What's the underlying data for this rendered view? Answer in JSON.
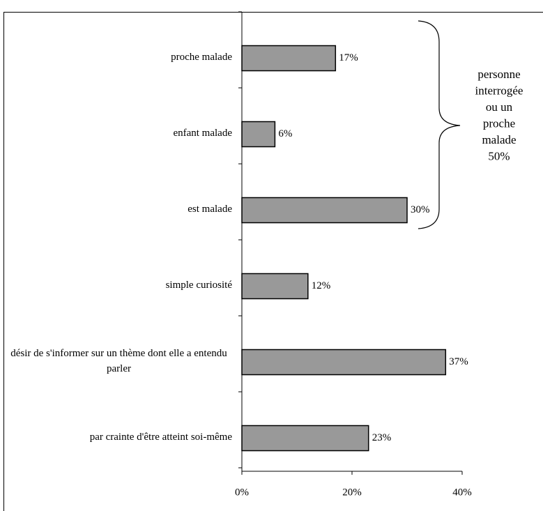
{
  "chart_data": {
    "type": "bar",
    "orientation": "horizontal",
    "categories": [
      "proche malade",
      "enfant malade",
      "est malade",
      "simple curiosité",
      "désir de s'informer sur un thème dont elle a entendu parler",
      "par crainte d'être atteint soi-même"
    ],
    "values": [
      17,
      6,
      30,
      12,
      37,
      23
    ],
    "value_labels": [
      "17%",
      "6%",
      "30%",
      "12%",
      "37%",
      "23%"
    ],
    "color": "#999999",
    "xlim": [
      0,
      40
    ],
    "xticks": [
      {
        "value": 0,
        "label": "0%"
      },
      {
        "value": 20,
        "label": "20%"
      },
      {
        "value": 40,
        "label": "40%"
      }
    ],
    "annotation": {
      "lines": [
        "personne",
        "interrogée",
        "ou un",
        "proche",
        "malade",
        "50%"
      ]
    }
  }
}
